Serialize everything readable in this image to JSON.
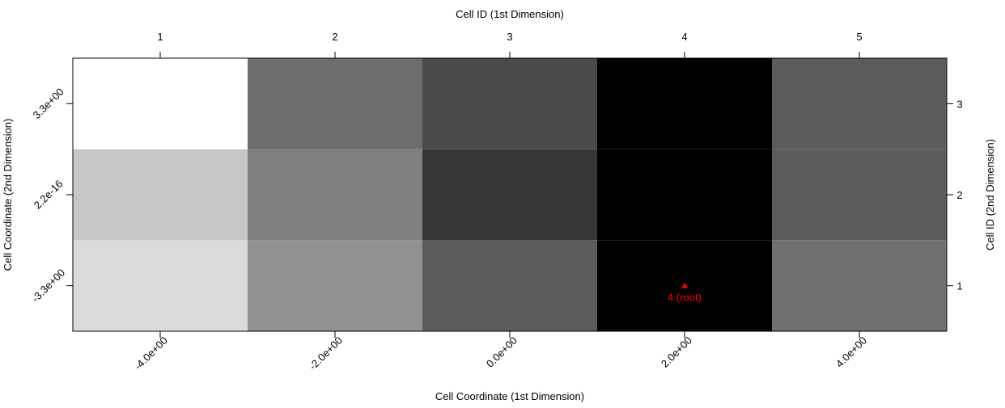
{
  "chart_data": {
    "type": "heatmap",
    "title_top": "Cell ID (1st Dimension)",
    "xlabel": "Cell Coordinate (1st Dimension)",
    "ylabel": "Cell Coordinate (2nd Dimension)",
    "y2label": "Cell ID (2nd Dimension)",
    "x": [
      -4,
      -2,
      0,
      2,
      4
    ],
    "y": [
      -3.3,
      2.2e-16,
      3.3
    ],
    "z": [
      [
        0.86,
        0.57,
        0.36,
        0,
        0.44
      ],
      [
        0.78,
        0.5,
        0.21,
        0,
        0.36
      ],
      [
        1,
        0.43,
        0.29,
        0,
        0.36
      ]
    ],
    "zlim": [
      0,
      1
    ],
    "xlim": [
      -5,
      5
    ],
    "xticks": [
      {
        "value": -4,
        "label": "-4.0e+00"
      },
      {
        "value": -2,
        "label": "-2.0e+00"
      },
      {
        "value": 0,
        "label": "0.0e+00"
      },
      {
        "value": 2,
        "label": "2.0e+00"
      },
      {
        "value": 4,
        "label": "4.0e+00"
      }
    ],
    "ylim": [
      -4.95,
      4.95
    ],
    "yticks": [
      {
        "value": -3.3,
        "label": "-3.3e+00"
      },
      {
        "value": 2.2e-16,
        "label": "2.2e-16"
      },
      {
        "value": 3.3,
        "label": "3.3e+00"
      }
    ],
    "x2lim": [
      0.5,
      5.5
    ],
    "x2ticks": [
      1,
      2,
      3,
      4,
      5
    ],
    "y2lim": [
      0.5,
      3.5
    ],
    "y2ticks": [
      1,
      2,
      3
    ],
    "annotations": [
      {
        "x": 2,
        "y": -3.3,
        "text": "4 (root)",
        "color": "#ff0000"
      }
    ]
  }
}
